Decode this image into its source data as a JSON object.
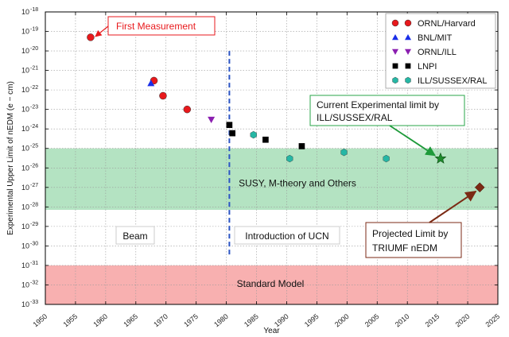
{
  "chart_data": {
    "type": "scatter",
    "title": "",
    "xlabel": "Year",
    "ylabel": "Experimental Upper Limit of nEDM (e − cm)",
    "x_range": [
      1950,
      2025
    ],
    "x_ticks": [
      1950,
      1955,
      1960,
      1965,
      1970,
      1975,
      1980,
      1985,
      1990,
      1995,
      2000,
      2005,
      2010,
      2015,
      2020,
      2025
    ],
    "y_scale": "log",
    "y_range_exponent": [
      -33,
      -18
    ],
    "y_ticks": [
      {
        "exp": -18,
        "label": "10",
        "sup": "-18"
      },
      {
        "exp": -19,
        "label": "10",
        "sup": "-19"
      },
      {
        "exp": -20,
        "label": "10",
        "sup": "-20"
      },
      {
        "exp": -21,
        "label": "10",
        "sup": "-21"
      },
      {
        "exp": -22,
        "label": "10",
        "sup": "-22"
      },
      {
        "exp": -23,
        "label": "10",
        "sup": "-23"
      },
      {
        "exp": -24,
        "label": "10",
        "sup": "-24"
      },
      {
        "exp": -25,
        "label": "10",
        "sup": "-25"
      },
      {
        "exp": -26,
        "label": "10",
        "sup": "-26"
      },
      {
        "exp": -27,
        "label": "10",
        "sup": "-27"
      },
      {
        "exp": -28,
        "label": "10",
        "sup": "-28"
      },
      {
        "exp": -29,
        "label": "10",
        "sup": "-29"
      },
      {
        "exp": -30,
        "label": "10",
        "sup": "-30"
      },
      {
        "exp": -31,
        "label": "10",
        "sup": "-31"
      },
      {
        "exp": -32,
        "label": "10",
        "sup": "-32"
      },
      {
        "exp": -33,
        "label": "10",
        "sup": "-33"
      }
    ],
    "grid": true,
    "legend_position": "top-right",
    "series": [
      {
        "name": "ORNL/Harvard",
        "marker": "circle",
        "color": "#e8191c",
        "points": [
          [
            1957.5,
            5e-20
          ],
          [
            1968,
            3e-22
          ],
          [
            1969.5,
            5e-23
          ],
          [
            1973.5,
            1e-23
          ]
        ]
      },
      {
        "name": "BNL/MIT",
        "marker": "triangle-up",
        "color": "#1a2ee8",
        "points": [
          [
            1967.5,
            2.2e-22
          ]
        ]
      },
      {
        "name": "ORNL/ILL",
        "marker": "triangle-down",
        "color": "#8b1fb0",
        "points": [
          [
            1977.5,
            3e-24
          ]
        ]
      },
      {
        "name": "LNPI",
        "marker": "square",
        "color": "#000000",
        "points": [
          [
            1980.5,
            1.6e-24
          ],
          [
            1981,
            6e-25
          ],
          [
            1986.5,
            2.8e-25
          ],
          [
            1992.5,
            1.3e-25
          ]
        ]
      },
      {
        "name": "ILL/SUSSEX/RAL",
        "marker": "hexagon",
        "color": "#26b7a5",
        "points": [
          [
            1984.5,
            5e-25
          ],
          [
            1990.5,
            3e-26
          ],
          [
            1999.5,
            6.3e-26
          ],
          [
            2006.5,
            3e-26
          ]
        ]
      }
    ],
    "special_points": [
      {
        "name": "current-limit",
        "x": 2015.5,
        "y": 3e-26,
        "marker": "star",
        "color": "#1e8a2c"
      },
      {
        "name": "projected-limit",
        "x": 2022,
        "y": 1e-27,
        "marker": "diamond",
        "color": "#7b2a14"
      }
    ],
    "bands": [
      {
        "name": "susy-band",
        "y_from_exp": -28.15,
        "y_to_exp": -25,
        "color": "#b4e3c2"
      },
      {
        "name": "standard-model-band",
        "y_from_exp": -33,
        "y_to_exp": -31,
        "color": "#f8b0b0"
      }
    ],
    "vertical_line": {
      "x": 1980.5,
      "y_top_exp": -20,
      "y_bottom_exp": -30.5,
      "color": "#2b54c4"
    },
    "annotations": {
      "first_measurement": "First  Measurement",
      "current_limit_line1": "Current Experimental limit by",
      "current_limit_line2": "ILL/SUSSEX/RAL",
      "projected_line1": "Projected Limit by",
      "projected_line2": "TRIUMF nEDM",
      "susy": "SUSY, M-theory and Others",
      "beam": "Beam",
      "ucn": "Introduction of UCN",
      "standard_model": "Standard Model"
    },
    "colors": {
      "first_measurement": "#e8191c",
      "current_limit_box": "#2aa64a",
      "projected_box": "#7b2a14",
      "beam": "#9b30c8",
      "ucn": "#2b54c4",
      "arrow_green": "#1e9a3a",
      "arrow_brown": "#7b2a14"
    }
  }
}
